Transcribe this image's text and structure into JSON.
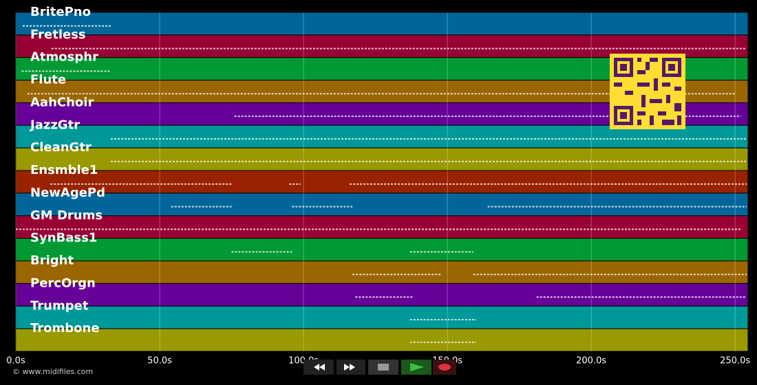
{
  "tracks": [
    {
      "name": "BritePno",
      "color": "#006699",
      "spans": [
        [
          2.4,
          33
        ]
      ]
    },
    {
      "name": "Fretless",
      "color": "#990033",
      "spans": [
        [
          12.4,
          254
        ]
      ]
    },
    {
      "name": "Atmosphr",
      "color": "#009933",
      "spans": [
        [
          2,
          33
        ]
      ]
    },
    {
      "name": "Flute",
      "color": "#996600",
      "spans": [
        [
          4,
          250
        ]
      ]
    },
    {
      "name": "AahChoir",
      "color": "#660099",
      "spans": [
        [
          76,
          252
        ]
      ]
    },
    {
      "name": "JazzGtr",
      "color": "#009999",
      "spans": [
        [
          33,
          254
        ]
      ]
    },
    {
      "name": "CleanGtr",
      "color": "#999900",
      "spans": [
        [
          33,
          254
        ]
      ]
    },
    {
      "name": "Ensmble1",
      "color": "#992200",
      "spans": [
        [
          12,
          75
        ],
        [
          95,
          99
        ],
        [
          116,
          254
        ]
      ]
    },
    {
      "name": "NewAgePd",
      "color": "#006699",
      "spans": [
        [
          54,
          75
        ],
        [
          96,
          117
        ],
        [
          164,
          254
        ]
      ]
    },
    {
      "name": "GM Drums",
      "color": "#990033",
      "spans": [
        [
          0,
          252
        ]
      ]
    },
    {
      "name": "SynBass1",
      "color": "#009933",
      "spans": [
        [
          75,
          96
        ],
        [
          137,
          159
        ]
      ]
    },
    {
      "name": "Bright",
      "color": "#996600",
      "spans": [
        [
          117,
          148
        ],
        [
          159,
          254
        ]
      ]
    },
    {
      "name": "PercOrgn",
      "color": "#660099",
      "spans": [
        [
          118,
          138
        ],
        [
          181,
          254
        ]
      ]
    },
    {
      "name": "Trumpet",
      "color": "#009999",
      "spans": [
        [
          137,
          160
        ]
      ]
    },
    {
      "name": "Trombone",
      "color": "#999900",
      "spans": [
        [
          137,
          160
        ]
      ]
    }
  ],
  "axis": {
    "xlim": [
      0,
      254.5
    ],
    "xticks": [
      {
        "value": 0,
        "label": "0.0s"
      },
      {
        "value": 50,
        "label": "50.0s"
      },
      {
        "value": 100,
        "label": "100.0s"
      },
      {
        "value": 150,
        "label": "150.0s"
      },
      {
        "value": 200,
        "label": "200.0s"
      },
      {
        "value": 250,
        "label": "250.0s"
      }
    ]
  },
  "footer": {
    "copyright": "© www.midifiles.com"
  }
}
